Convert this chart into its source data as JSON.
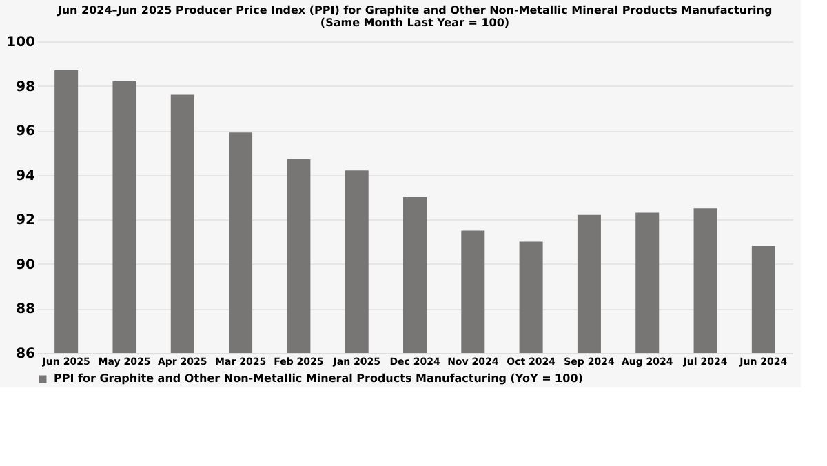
{
  "chart_data": {
    "type": "bar",
    "title": "Jun 2024–Jun 2025 Producer Price Index (PPI) for Graphite and Other Non-Metallic Mineral Products Manufacturing",
    "subtitle": "(Same Month Last Year = 100)",
    "categories": [
      "Jun 2025",
      "May 2025",
      "Apr 2025",
      "Mar 2025",
      "Feb 2025",
      "Jan 2025",
      "Dec 2024",
      "Nov 2024",
      "Oct 2024",
      "Sep 2024",
      "Aug 2024",
      "Jul 2024",
      "Jun 2024"
    ],
    "series": [
      {
        "name": "PPI for Graphite and Other Non-Metallic Mineral Products Manufacturing (YoY = 100)",
        "color": "#787575",
        "values": [
          98.7,
          98.2,
          97.6,
          95.9,
          94.7,
          94.2,
          93.0,
          91.5,
          91.0,
          92.2,
          92.3,
          92.5,
          90.8
        ]
      }
    ],
    "ylim": [
      86,
      100
    ],
    "yticks": [
      86,
      88,
      90,
      92,
      94,
      96,
      98,
      100
    ],
    "grid": "y",
    "legend": "bottom"
  }
}
